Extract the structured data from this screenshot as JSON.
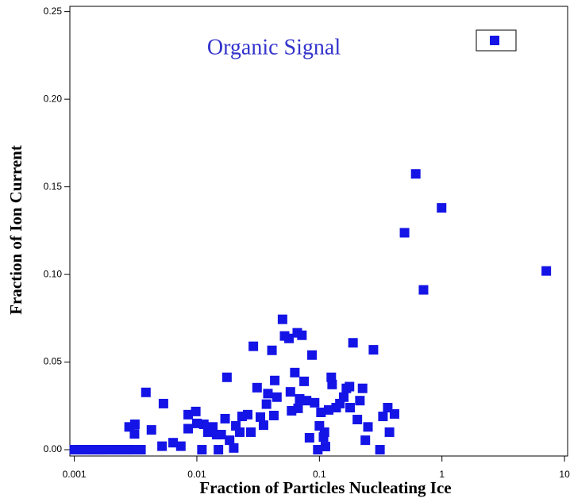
{
  "chart_data": {
    "type": "scatter",
    "title": "Organic Signal",
    "x_label": "Fraction of Particles Nucleating Ice",
    "y_label": "Fraction of Ion Current",
    "log_x": true,
    "legend": "upper right",
    "xlim": [
      0.00092,
      10.6
    ],
    "ylim": [
      -0.0036,
      0.253
    ],
    "xticks": [
      0.001,
      0.01,
      0.1,
      1,
      10
    ],
    "yticks": [
      {
        "value": 0,
        "label": "0.00"
      },
      0.05,
      {
        "value": 0.1,
        "label": "0.10"
      },
      0.15,
      {
        "value": 0.2,
        "label": "0.20"
      },
      0.25
    ],
    "series": [
      {
        "color": "#1414e6",
        "x": [
          0.001,
          0.0011,
          0.0012,
          0.0013,
          0.0014,
          0.0015,
          0.0016,
          0.0017,
          0.0018,
          0.002,
          0.0022,
          0.0024,
          0.0026,
          0.0028,
          0.003,
          0.0035,
          0.0028,
          0.00312,
          0.0031,
          0.00384,
          0.00426,
          0.00534,
          0.0052,
          0.0064,
          0.0074,
          0.0085,
          0.0085,
          0.0098,
          0.01,
          0.0114,
          0.0123,
          0.0135,
          0.0145,
          0.0158,
          0.017,
          0.0176,
          0.0185,
          0.0208,
          0.0224,
          0.0234,
          0.026,
          0.0276,
          0.0289,
          0.031,
          0.033,
          0.035,
          0.037,
          0.038,
          0.041,
          0.0425,
          0.0432,
          0.045,
          0.05,
          0.052,
          0.0565,
          0.058,
          0.0593,
          0.063,
          0.066,
          0.067,
          0.069,
          0.072,
          0.075,
          0.0786,
          0.083,
          0.087,
          0.0914,
          0.097,
          0.1,
          0.103,
          0.108,
          0.11,
          0.112,
          0.119,
          0.125,
          0.127,
          0.137,
          0.147,
          0.158,
          0.166,
          0.176,
          0.178,
          0.188,
          0.204,
          0.214,
          0.225,
          0.237,
          0.249,
          0.276,
          0.312,
          0.33,
          0.361,
          0.373,
          0.41,
          0.495,
          0.611,
          0.707,
          0.993,
          7.1,
          0.011,
          0.015,
          0.02
        ],
        "values": [
          0,
          0,
          0,
          0,
          0,
          0,
          0,
          0,
          0,
          0,
          0,
          0,
          0,
          0,
          0,
          0,
          0.013,
          0.0145,
          0.009,
          0.0327,
          0.0113,
          0.0263,
          0.002,
          0.004,
          0.002,
          0.02,
          0.012,
          0.0218,
          0.015,
          0.0145,
          0.01,
          0.013,
          0.0086,
          0.0086,
          0.0177,
          0.0413,
          0.0054,
          0.0136,
          0.01,
          0.019,
          0.02,
          0.01,
          0.059,
          0.0354,
          0.0186,
          0.014,
          0.026,
          0.032,
          0.0567,
          0.0195,
          0.0395,
          0.03,
          0.0744,
          0.0649,
          0.0635,
          0.033,
          0.0222,
          0.044,
          0.0667,
          0.0236,
          0.029,
          0.0653,
          0.039,
          0.028,
          0.0068,
          0.054,
          0.0268,
          0,
          0.0136,
          0.0213,
          0.0072,
          0.01,
          0.0018,
          0.0227,
          0.0413,
          0.0372,
          0.024,
          0.0263,
          0.03,
          0.035,
          0.036,
          0.024,
          0.061,
          0.0172,
          0.028,
          0.035,
          0.0054,
          0.013,
          0.057,
          0,
          0.019,
          0.024,
          0.01,
          0.0204,
          0.1238,
          0.1574,
          0.0912,
          0.138,
          0.102,
          0,
          0,
          0.001
        ]
      }
    ]
  }
}
